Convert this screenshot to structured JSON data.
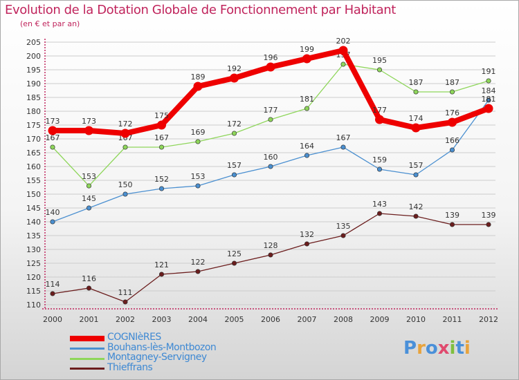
{
  "title": "Evolution de la Dotation Globale de Fonctionnement par Habitant",
  "subtitle": "(en € et par an)",
  "colors": {
    "title": "#c0245c",
    "axis": "#c0245c",
    "grid": "#cccccc",
    "label": "#333333",
    "legend_text": "#3f89d3"
  },
  "brand": {
    "name": "Proxiti",
    "letters": [
      {
        "ch": "P",
        "color": "#4a90d9"
      },
      {
        "ch": "r",
        "color": "#e8a33c"
      },
      {
        "ch": "o",
        "color": "#4a90d9"
      },
      {
        "ch": "x",
        "color": "#e04a6e"
      },
      {
        "ch": "i",
        "color": "#7fbf3f"
      },
      {
        "ch": "t",
        "color": "#4a90d9"
      },
      {
        "ch": "i",
        "color": "#e8a33c"
      }
    ]
  },
  "chart_data": {
    "type": "line",
    "title": "Evolution de la Dotation Globale de Fonctionnement par Habitant",
    "subtitle": "(en € et par an)",
    "xlabel": "",
    "ylabel": "",
    "ylim": [
      110,
      205
    ],
    "ytick_step": 5,
    "grid": true,
    "legend_position": "bottom-left",
    "categories": [
      "2000",
      "2001",
      "2002",
      "2003",
      "2004",
      "2005",
      "2006",
      "2007",
      "2008",
      "2009",
      "2010",
      "2011",
      "2012"
    ],
    "series": [
      {
        "name": "COGNIèRES",
        "color": "#ee0000",
        "emphasis": true,
        "values": [
          173,
          173,
          172,
          175,
          189,
          192,
          196,
          199,
          202,
          177,
          174,
          176,
          181
        ]
      },
      {
        "name": "Bouhans-lès-Montbozon",
        "color": "#4a8fd0",
        "emphasis": false,
        "values": [
          140,
          145,
          150,
          152,
          153,
          157,
          160,
          164,
          167,
          159,
          157,
          166,
          184
        ]
      },
      {
        "name": "Montagney-Servigney",
        "color": "#8ed65a",
        "emphasis": false,
        "values": [
          167,
          153,
          167,
          167,
          169,
          172,
          177,
          181,
          197,
          195,
          187,
          187,
          191
        ]
      },
      {
        "name": "Thieffrans",
        "color": "#6b1d1d",
        "emphasis": false,
        "values": [
          114,
          116,
          111,
          121,
          122,
          125,
          128,
          132,
          135,
          143,
          142,
          139,
          139
        ]
      }
    ]
  }
}
